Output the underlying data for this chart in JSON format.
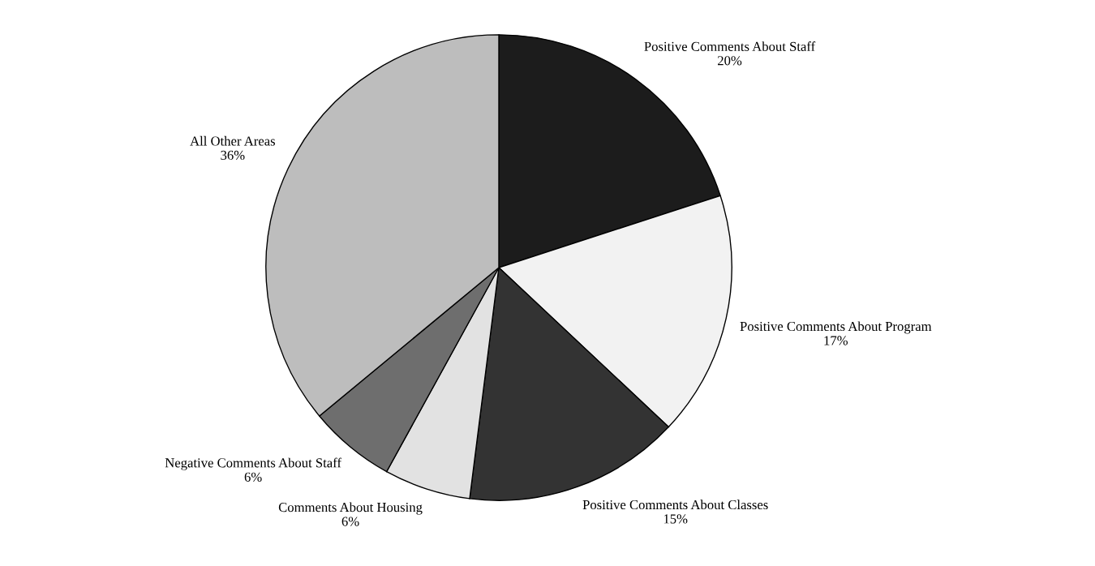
{
  "chart_data": {
    "type": "pie",
    "categories": [
      "Positive Comments About Staff",
      "Positive Comments About Program",
      "Positive Comments About Classes",
      "Comments About Housing",
      "Negative Comments About Staff",
      "All Other Areas"
    ],
    "values": [
      20,
      17,
      15,
      6,
      6,
      36
    ],
    "value_labels": [
      "20%",
      "17%",
      "15%",
      "6%",
      "6%",
      "36%"
    ],
    "colors": [
      "#1c1c1c",
      "#f2f2f2",
      "#333333",
      "#e2e2e2",
      "#6e6e6e",
      "#bdbdbd"
    ]
  }
}
